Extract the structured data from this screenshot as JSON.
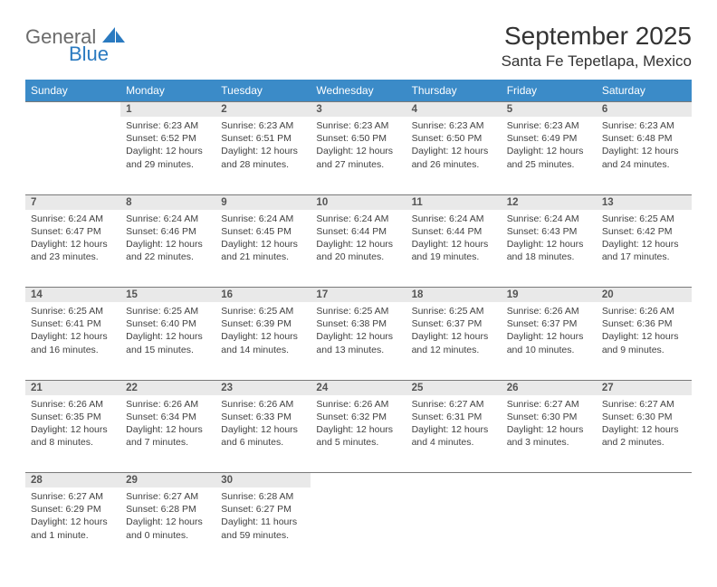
{
  "brand": {
    "general": "General",
    "blue": "Blue"
  },
  "title": "September 2025",
  "location": "Santa Fe Tepetlapa, Mexico",
  "header_bg": "#3b8bc8",
  "daynum_bg": "#e9e9e9",
  "daynum_border": "#7a7a7a",
  "text_color": "#414141",
  "days_of_week": [
    "Sunday",
    "Monday",
    "Tuesday",
    "Wednesday",
    "Thursday",
    "Friday",
    "Saturday"
  ],
  "weeks": [
    [
      null,
      {
        "n": "1",
        "sr": "Sunrise: 6:23 AM",
        "ss": "Sunset: 6:52 PM",
        "dl": "Daylight: 12 hours and 29 minutes."
      },
      {
        "n": "2",
        "sr": "Sunrise: 6:23 AM",
        "ss": "Sunset: 6:51 PM",
        "dl": "Daylight: 12 hours and 28 minutes."
      },
      {
        "n": "3",
        "sr": "Sunrise: 6:23 AM",
        "ss": "Sunset: 6:50 PM",
        "dl": "Daylight: 12 hours and 27 minutes."
      },
      {
        "n": "4",
        "sr": "Sunrise: 6:23 AM",
        "ss": "Sunset: 6:50 PM",
        "dl": "Daylight: 12 hours and 26 minutes."
      },
      {
        "n": "5",
        "sr": "Sunrise: 6:23 AM",
        "ss": "Sunset: 6:49 PM",
        "dl": "Daylight: 12 hours and 25 minutes."
      },
      {
        "n": "6",
        "sr": "Sunrise: 6:23 AM",
        "ss": "Sunset: 6:48 PM",
        "dl": "Daylight: 12 hours and 24 minutes."
      }
    ],
    [
      {
        "n": "7",
        "sr": "Sunrise: 6:24 AM",
        "ss": "Sunset: 6:47 PM",
        "dl": "Daylight: 12 hours and 23 minutes."
      },
      {
        "n": "8",
        "sr": "Sunrise: 6:24 AM",
        "ss": "Sunset: 6:46 PM",
        "dl": "Daylight: 12 hours and 22 minutes."
      },
      {
        "n": "9",
        "sr": "Sunrise: 6:24 AM",
        "ss": "Sunset: 6:45 PM",
        "dl": "Daylight: 12 hours and 21 minutes."
      },
      {
        "n": "10",
        "sr": "Sunrise: 6:24 AM",
        "ss": "Sunset: 6:44 PM",
        "dl": "Daylight: 12 hours and 20 minutes."
      },
      {
        "n": "11",
        "sr": "Sunrise: 6:24 AM",
        "ss": "Sunset: 6:44 PM",
        "dl": "Daylight: 12 hours and 19 minutes."
      },
      {
        "n": "12",
        "sr": "Sunrise: 6:24 AM",
        "ss": "Sunset: 6:43 PM",
        "dl": "Daylight: 12 hours and 18 minutes."
      },
      {
        "n": "13",
        "sr": "Sunrise: 6:25 AM",
        "ss": "Sunset: 6:42 PM",
        "dl": "Daylight: 12 hours and 17 minutes."
      }
    ],
    [
      {
        "n": "14",
        "sr": "Sunrise: 6:25 AM",
        "ss": "Sunset: 6:41 PM",
        "dl": "Daylight: 12 hours and 16 minutes."
      },
      {
        "n": "15",
        "sr": "Sunrise: 6:25 AM",
        "ss": "Sunset: 6:40 PM",
        "dl": "Daylight: 12 hours and 15 minutes."
      },
      {
        "n": "16",
        "sr": "Sunrise: 6:25 AM",
        "ss": "Sunset: 6:39 PM",
        "dl": "Daylight: 12 hours and 14 minutes."
      },
      {
        "n": "17",
        "sr": "Sunrise: 6:25 AM",
        "ss": "Sunset: 6:38 PM",
        "dl": "Daylight: 12 hours and 13 minutes."
      },
      {
        "n": "18",
        "sr": "Sunrise: 6:25 AM",
        "ss": "Sunset: 6:37 PM",
        "dl": "Daylight: 12 hours and 12 minutes."
      },
      {
        "n": "19",
        "sr": "Sunrise: 6:26 AM",
        "ss": "Sunset: 6:37 PM",
        "dl": "Daylight: 12 hours and 10 minutes."
      },
      {
        "n": "20",
        "sr": "Sunrise: 6:26 AM",
        "ss": "Sunset: 6:36 PM",
        "dl": "Daylight: 12 hours and 9 minutes."
      }
    ],
    [
      {
        "n": "21",
        "sr": "Sunrise: 6:26 AM",
        "ss": "Sunset: 6:35 PM",
        "dl": "Daylight: 12 hours and 8 minutes."
      },
      {
        "n": "22",
        "sr": "Sunrise: 6:26 AM",
        "ss": "Sunset: 6:34 PM",
        "dl": "Daylight: 12 hours and 7 minutes."
      },
      {
        "n": "23",
        "sr": "Sunrise: 6:26 AM",
        "ss": "Sunset: 6:33 PM",
        "dl": "Daylight: 12 hours and 6 minutes."
      },
      {
        "n": "24",
        "sr": "Sunrise: 6:26 AM",
        "ss": "Sunset: 6:32 PM",
        "dl": "Daylight: 12 hours and 5 minutes."
      },
      {
        "n": "25",
        "sr": "Sunrise: 6:27 AM",
        "ss": "Sunset: 6:31 PM",
        "dl": "Daylight: 12 hours and 4 minutes."
      },
      {
        "n": "26",
        "sr": "Sunrise: 6:27 AM",
        "ss": "Sunset: 6:30 PM",
        "dl": "Daylight: 12 hours and 3 minutes."
      },
      {
        "n": "27",
        "sr": "Sunrise: 6:27 AM",
        "ss": "Sunset: 6:30 PM",
        "dl": "Daylight: 12 hours and 2 minutes."
      }
    ],
    [
      {
        "n": "28",
        "sr": "Sunrise: 6:27 AM",
        "ss": "Sunset: 6:29 PM",
        "dl": "Daylight: 12 hours and 1 minute."
      },
      {
        "n": "29",
        "sr": "Sunrise: 6:27 AM",
        "ss": "Sunset: 6:28 PM",
        "dl": "Daylight: 12 hours and 0 minutes."
      },
      {
        "n": "30",
        "sr": "Sunrise: 6:28 AM",
        "ss": "Sunset: 6:27 PM",
        "dl": "Daylight: 11 hours and 59 minutes."
      },
      null,
      null,
      null,
      null
    ]
  ]
}
